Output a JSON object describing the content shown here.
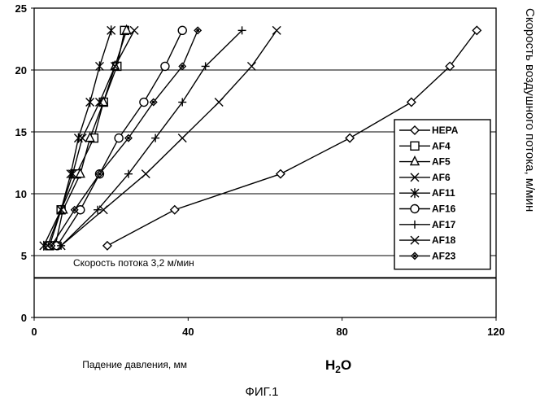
{
  "caption": "ФИГ.1",
  "chart_data": {
    "type": "line",
    "xlabel": "Падение давления, мм",
    "xlabel_unit": "H2O",
    "ylabel": "Скорость воздушного потока, м/мин",
    "xlim": [
      0,
      120
    ],
    "ylim": [
      0,
      25
    ],
    "xticks": [
      0,
      40,
      80,
      120
    ],
    "yticks": [
      0,
      5,
      10,
      15,
      20,
      25
    ],
    "grid": "horizontal",
    "legend_position": "right",
    "annotation": {
      "text": "Скорость потока 3,2 м/мин",
      "y": 3.2
    },
    "series": [
      {
        "name": "HEPA",
        "marker": "diamond-open",
        "x": [
          19,
          36.5,
          64,
          82,
          98,
          108,
          115
        ],
        "y": [
          5.8,
          8.7,
          11.6,
          14.5,
          17.4,
          20.3,
          23.2
        ]
      },
      {
        "name": "AF4",
        "marker": "square-open",
        "x": [
          4,
          7,
          11,
          15.5,
          18,
          21.5,
          23.5
        ],
        "y": [
          5.8,
          8.7,
          11.6,
          14.5,
          17.4,
          20.3,
          23.2
        ]
      },
      {
        "name": "AF5",
        "marker": "triangle-open",
        "x": [
          5.5,
          7.5,
          12,
          14.5,
          18,
          21,
          24
        ],
        "y": [
          5.8,
          8.7,
          11.6,
          14.5,
          17.4,
          20.3,
          23.2
        ]
      },
      {
        "name": "AF6",
        "marker": "x",
        "x": [
          3.5,
          7,
          10,
          12.5,
          17,
          21,
          26
        ],
        "y": [
          5.8,
          8.7,
          11.6,
          14.5,
          17.4,
          20.3,
          23.2
        ]
      },
      {
        "name": "AF11",
        "marker": "asterisk",
        "x": [
          2.5,
          7,
          9.5,
          11.5,
          14.5,
          17,
          20
        ],
        "y": [
          5.8,
          8.7,
          11.6,
          14.5,
          17.4,
          20.3,
          23.2
        ]
      },
      {
        "name": "AF16",
        "marker": "circle-open",
        "x": [
          6,
          12,
          17,
          22,
          28.5,
          34,
          38.5
        ],
        "y": [
          5.8,
          8.7,
          11.6,
          14.5,
          17.4,
          20.3,
          23.2
        ]
      },
      {
        "name": "AF17",
        "marker": "plus",
        "x": [
          7,
          16.5,
          24.5,
          31.5,
          38.5,
          44.5,
          54
        ],
        "y": [
          5.8,
          8.7,
          11.6,
          14.5,
          17.4,
          20.3,
          23.2
        ]
      },
      {
        "name": "AF18",
        "marker": "x",
        "x": [
          7,
          18,
          29,
          38.5,
          48,
          56.5,
          63
        ],
        "y": [
          5.8,
          8.7,
          11.6,
          14.5,
          17.4,
          20.3,
          23.2
        ]
      },
      {
        "name": "AF23",
        "marker": "diamond-small",
        "x": [
          4.5,
          10.5,
          17,
          24.5,
          31,
          38.5,
          42.5
        ],
        "y": [
          5.8,
          8.7,
          11.6,
          14.5,
          17.4,
          20.3,
          23.2
        ]
      }
    ]
  }
}
